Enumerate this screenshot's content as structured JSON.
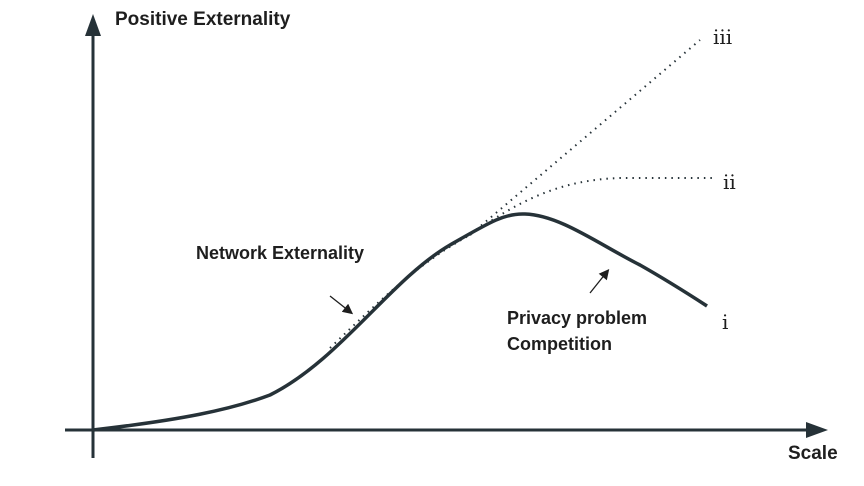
{
  "axes": {
    "y_label": "Positive Externality",
    "x_label": "Scale"
  },
  "labels": {
    "network": "Network Externality",
    "privacy": "Privacy problem",
    "competition": "Competition"
  },
  "curves": {
    "i": "i",
    "ii": "ii",
    "iii": "iii"
  },
  "colors": {
    "line": "#263238"
  }
}
